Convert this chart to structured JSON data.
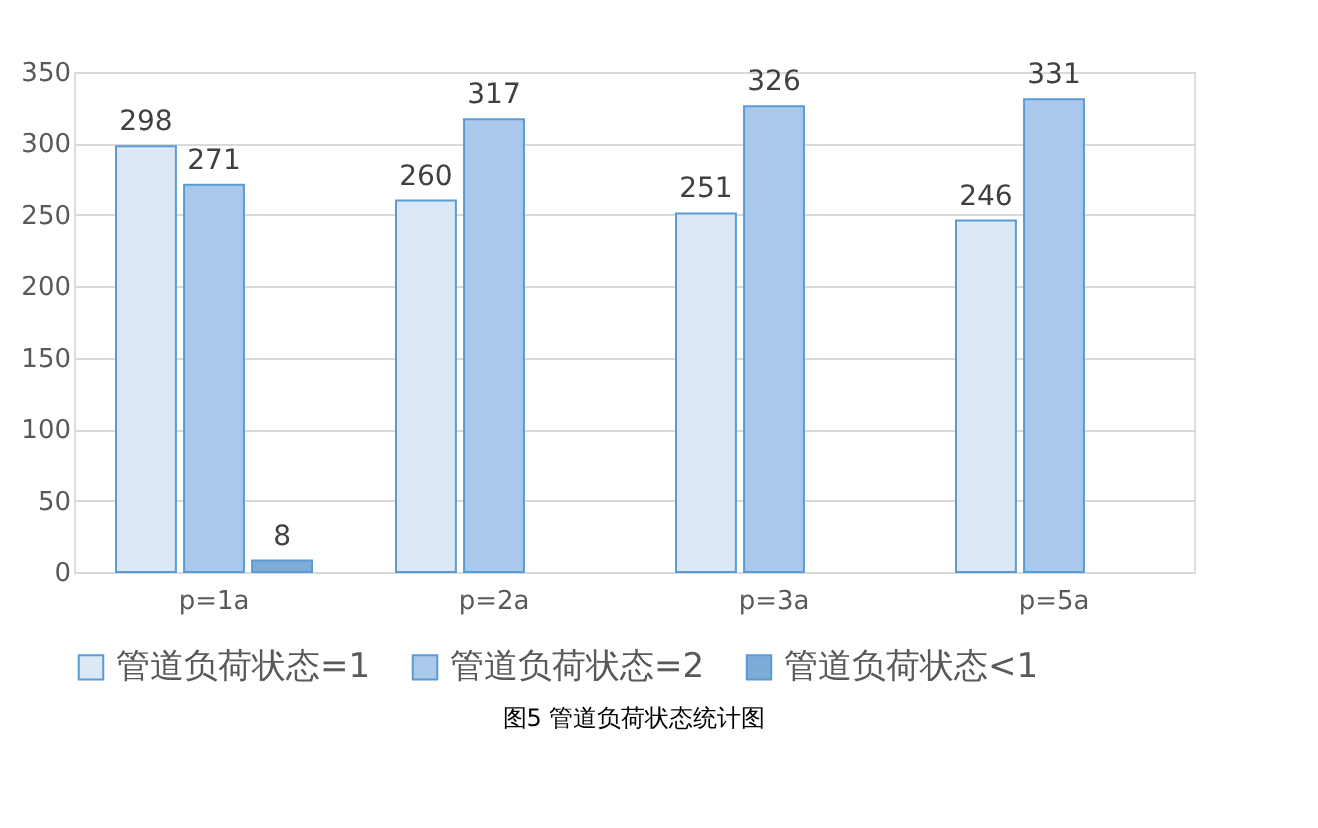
{
  "chart_data": {
    "type": "bar",
    "categories": [
      "p=1a",
      "p=2a",
      "p=3a",
      "p=5a"
    ],
    "series": [
      {
        "name": "管道负荷状态=1",
        "color": "#dce8f6",
        "values": [
          298,
          260,
          251,
          246
        ]
      },
      {
        "name": "管道负荷状态=2",
        "color": "#a9c8ea",
        "values": [
          271,
          317,
          326,
          331
        ]
      },
      {
        "name": "管道负荷状态<1",
        "color": "#7fabd9",
        "values": [
          8,
          null,
          null,
          null
        ]
      }
    ],
    "ylim": [
      0,
      350
    ],
    "yticks": [
      0,
      50,
      100,
      150,
      200,
      250,
      300,
      350
    ],
    "grid": "y",
    "legend": "bottom",
    "data_labels": true,
    "annotations": [
      "图5 管道负荷状态统计图"
    ]
  }
}
